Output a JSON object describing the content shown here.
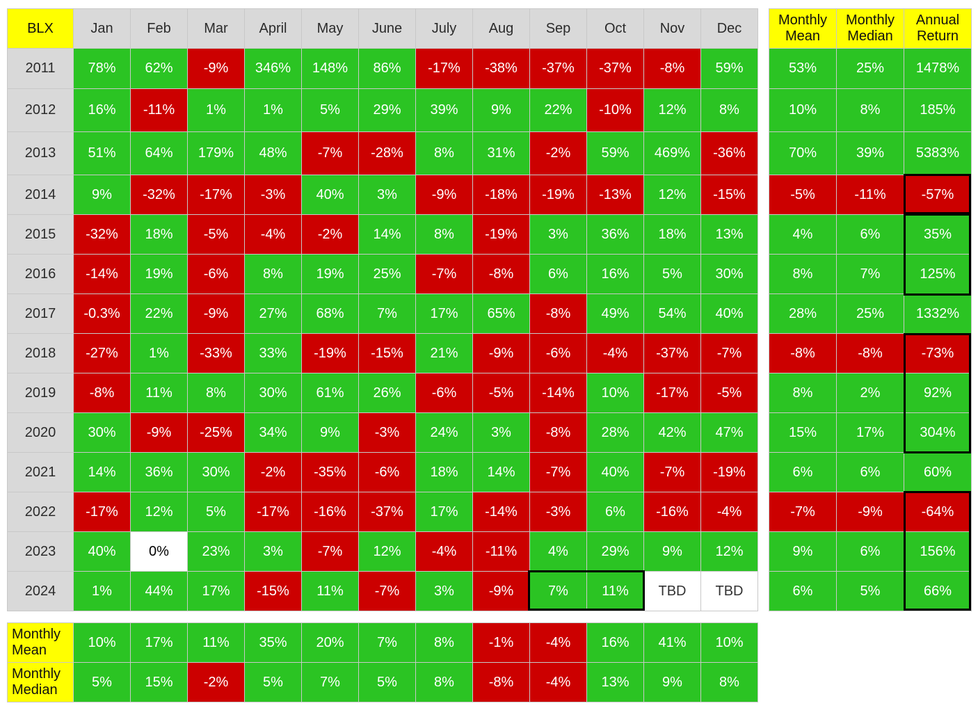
{
  "table_title": "BLX",
  "months": [
    "Jan",
    "Feb",
    "Mar",
    "April",
    "May",
    "June",
    "July",
    "Aug",
    "Sep",
    "Oct",
    "Nov",
    "Dec"
  ],
  "summary_headers": [
    "Monthly Mean",
    "Monthly Median",
    "Annual Return"
  ],
  "footer_labels": [
    "Monthly Mean",
    "Monthly Median"
  ],
  "colors": {
    "positive": "#2bc423",
    "negative": "#cc0000",
    "header_label": "#ffff00",
    "header_gray": "#d9d9d9",
    "neutral": "#ffffff"
  },
  "chart_data": {
    "type": "table",
    "title": "BLX",
    "columns": [
      "Jan",
      "Feb",
      "Mar",
      "April",
      "May",
      "June",
      "July",
      "Aug",
      "Sep",
      "Oct",
      "Nov",
      "Dec"
    ],
    "rows": [
      {
        "year": "2011",
        "months": [
          "78%",
          "62%",
          "-9%",
          "346%",
          "148%",
          "86%",
          "-17%",
          "-38%",
          "-37%",
          "-37%",
          "-8%",
          "59%"
        ],
        "mean": "53%",
        "median": "25%",
        "annual": "1478%"
      },
      {
        "year": "2012",
        "months": [
          "16%",
          "-11%",
          "1%",
          "1%",
          "5%",
          "29%",
          "39%",
          "9%",
          "22%",
          "-10%",
          "12%",
          "8%"
        ],
        "mean": "10%",
        "median": "8%",
        "annual": "185%"
      },
      {
        "year": "2013",
        "months": [
          "51%",
          "64%",
          "179%",
          "48%",
          "-7%",
          "-28%",
          "8%",
          "31%",
          "-2%",
          "59%",
          "469%",
          "-36%"
        ],
        "mean": "70%",
        "median": "39%",
        "annual": "5383%"
      },
      {
        "year": "2014",
        "months": [
          "9%",
          "-32%",
          "-17%",
          "-3%",
          "40%",
          "3%",
          "-9%",
          "-18%",
          "-19%",
          "-13%",
          "12%",
          "-15%"
        ],
        "mean": "-5%",
        "median": "-11%",
        "annual": "-57%"
      },
      {
        "year": "2015",
        "months": [
          "-32%",
          "18%",
          "-5%",
          "-4%",
          "-2%",
          "14%",
          "8%",
          "-19%",
          "3%",
          "36%",
          "18%",
          "13%"
        ],
        "mean": "4%",
        "median": "6%",
        "annual": "35%"
      },
      {
        "year": "2016",
        "months": [
          "-14%",
          "19%",
          "-6%",
          "8%",
          "19%",
          "25%",
          "-7%",
          "-8%",
          "6%",
          "16%",
          "5%",
          "30%"
        ],
        "mean": "8%",
        "median": "7%",
        "annual": "125%"
      },
      {
        "year": "2017",
        "months": [
          "-0.3%",
          "22%",
          "-9%",
          "27%",
          "68%",
          "7%",
          "17%",
          "65%",
          "-8%",
          "49%",
          "54%",
          "40%"
        ],
        "mean": "28%",
        "median": "25%",
        "annual": "1332%"
      },
      {
        "year": "2018",
        "months": [
          "-27%",
          "1%",
          "-33%",
          "33%",
          "-19%",
          "-15%",
          "21%",
          "-9%",
          "-6%",
          "-4%",
          "-37%",
          "-7%"
        ],
        "mean": "-8%",
        "median": "-8%",
        "annual": "-73%"
      },
      {
        "year": "2019",
        "months": [
          "-8%",
          "11%",
          "8%",
          "30%",
          "61%",
          "26%",
          "-6%",
          "-5%",
          "-14%",
          "10%",
          "-17%",
          "-5%"
        ],
        "mean": "8%",
        "median": "2%",
        "annual": "92%"
      },
      {
        "year": "2020",
        "months": [
          "30%",
          "-9%",
          "-25%",
          "34%",
          "9%",
          "-3%",
          "24%",
          "3%",
          "-8%",
          "28%",
          "42%",
          "47%"
        ],
        "mean": "15%",
        "median": "17%",
        "annual": "304%"
      },
      {
        "year": "2021",
        "months": [
          "14%",
          "36%",
          "30%",
          "-2%",
          "-35%",
          "-6%",
          "18%",
          "14%",
          "-7%",
          "40%",
          "-7%",
          "-19%"
        ],
        "mean": "6%",
        "median": "6%",
        "annual": "60%"
      },
      {
        "year": "2022",
        "months": [
          "-17%",
          "12%",
          "5%",
          "-17%",
          "-16%",
          "-37%",
          "17%",
          "-14%",
          "-3%",
          "6%",
          "-16%",
          "-4%"
        ],
        "mean": "-7%",
        "median": "-9%",
        "annual": "-64%"
      },
      {
        "year": "2023",
        "months": [
          "40%",
          "0%",
          "23%",
          "3%",
          "-7%",
          "12%",
          "-4%",
          "-11%",
          "4%",
          "29%",
          "9%",
          "12%"
        ],
        "mean": "9%",
        "median": "6%",
        "annual": "156%"
      },
      {
        "year": "2024",
        "months": [
          "1%",
          "44%",
          "17%",
          "-15%",
          "11%",
          "-7%",
          "3%",
          "-9%",
          "7%",
          "11%",
          "TBD",
          "TBD"
        ],
        "mean": "6%",
        "median": "5%",
        "annual": "66%"
      }
    ],
    "footer": {
      "mean": [
        "10%",
        "17%",
        "11%",
        "35%",
        "20%",
        "7%",
        "8%",
        "-1%",
        "-4%",
        "16%",
        "41%",
        "10%"
      ],
      "median": [
        "5%",
        "15%",
        "-2%",
        "5%",
        "7%",
        "5%",
        "8%",
        "-8%",
        "-4%",
        "13%",
        "9%",
        "8%"
      ]
    }
  }
}
